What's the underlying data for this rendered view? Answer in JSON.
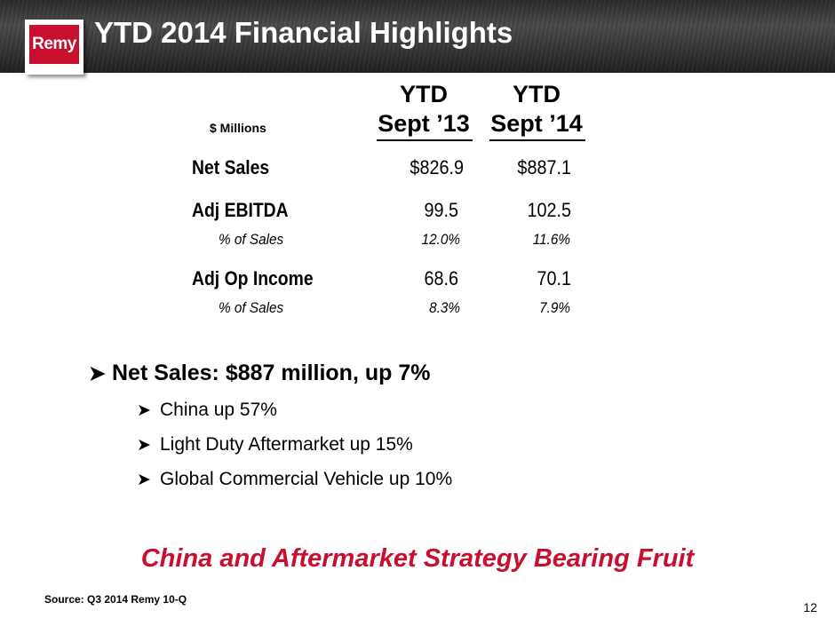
{
  "header": {
    "logo_text": "Remy",
    "title": "YTD 2014 Financial Highlights"
  },
  "table": {
    "units_label": "$ Millions",
    "columns": [
      {
        "line1": "YTD",
        "line2": "Sept ’13"
      },
      {
        "line1": "YTD",
        "line2": "Sept ’14"
      }
    ],
    "rows": [
      {
        "label": "Net Sales",
        "values": [
          "$826.9",
          "$887.1"
        ]
      },
      {
        "label": "Adj EBITDA",
        "values": [
          "99.5",
          "102.5"
        ],
        "sub_label": "% of Sales",
        "sub_values": [
          "12.0%",
          "11.6%"
        ]
      },
      {
        "label": "Adj Op Income",
        "values": [
          "68.6",
          "70.1"
        ],
        "sub_label": "% of Sales",
        "sub_values": [
          "8.3%",
          "7.9%"
        ]
      }
    ]
  },
  "bullets": {
    "main": "Net Sales: $887 million, up 7%",
    "subs": [
      "China up 57%",
      "Light Duty Aftermarket up 15%",
      "Global Commercial Vehicle up 10%"
    ]
  },
  "tagline": "China and Aftermarket Strategy Bearing Fruit",
  "source": "Source: Q3 2014 Remy 10-Q",
  "page_number": "12",
  "colors": {
    "brand_red": "#c8102e",
    "header_dark": "#333333"
  }
}
